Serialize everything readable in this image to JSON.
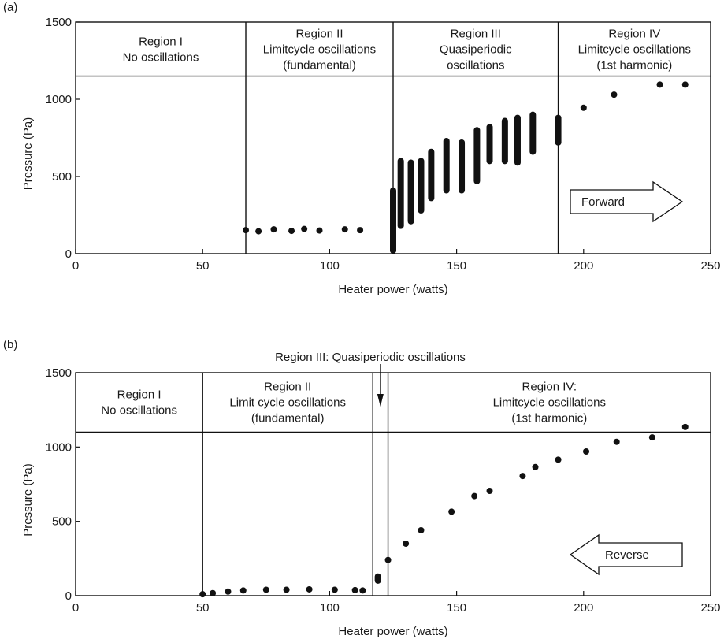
{
  "chart_data": [
    {
      "panel_label": "(a)",
      "type": "scatter",
      "xlabel": "Heater power (watts)",
      "ylabel": "Pressure (Pa)",
      "xlim": [
        0,
        250
      ],
      "ylim": [
        0,
        1500
      ],
      "xticks": [
        0,
        50,
        100,
        150,
        200,
        250
      ],
      "yticks": [
        0,
        500,
        1000,
        1500
      ],
      "grid": false,
      "band_top": 1150,
      "regions": [
        {
          "lines": [
            "Region I",
            "No oscillations"
          ],
          "x_from": 0,
          "x_to": 67
        },
        {
          "lines": [
            "Region II",
            "Limitcycle oscillations",
            "(fundamental)"
          ],
          "x_from": 67,
          "x_to": 125
        },
        {
          "lines": [
            "Region III",
            "Quasiperiodic",
            "oscillations"
          ],
          "x_from": 125,
          "x_to": 190
        },
        {
          "lines": [
            "Region IV",
            "Limitcycle oscillations",
            "(1st harmonic)"
          ],
          "x_from": 190,
          "x_to": 250
        }
      ],
      "arrow": {
        "label": "Forward",
        "direction": "right"
      },
      "series": [
        {
          "marks": [
            {
              "x": 67,
              "y_min": 135,
              "y_max": 170
            },
            {
              "x": 72,
              "y_min": 130,
              "y_max": 160
            },
            {
              "x": 78,
              "y_min": 145,
              "y_max": 170
            },
            {
              "x": 85,
              "y_min": 130,
              "y_max": 165
            },
            {
              "x": 90,
              "y_min": 145,
              "y_max": 175
            },
            {
              "x": 96,
              "y_min": 130,
              "y_max": 170
            },
            {
              "x": 106,
              "y_min": 145,
              "y_max": 170
            },
            {
              "x": 112,
              "y_min": 135,
              "y_max": 170
            },
            {
              "x": 125,
              "y_min": 0,
              "y_max": 430
            },
            {
              "x": 128,
              "y_min": 160,
              "y_max": 620
            },
            {
              "x": 132,
              "y_min": 190,
              "y_max": 610
            },
            {
              "x": 136,
              "y_min": 260,
              "y_max": 620
            },
            {
              "x": 140,
              "y_min": 340,
              "y_max": 680
            },
            {
              "x": 146,
              "y_min": 390,
              "y_max": 750
            },
            {
              "x": 152,
              "y_min": 390,
              "y_max": 740
            },
            {
              "x": 158,
              "y_min": 450,
              "y_max": 820
            },
            {
              "x": 163,
              "y_min": 580,
              "y_max": 840
            },
            {
              "x": 169,
              "y_min": 580,
              "y_max": 880
            },
            {
              "x": 174,
              "y_min": 570,
              "y_max": 900
            },
            {
              "x": 180,
              "y_min": 640,
              "y_max": 920
            },
            {
              "x": 190,
              "y_min": 700,
              "y_max": 900
            },
            {
              "x": 200,
              "y_min": 930,
              "y_max": 960
            },
            {
              "x": 212,
              "y_min": 1010,
              "y_max": 1050
            },
            {
              "x": 230,
              "y_min": 1080,
              "y_max": 1110
            },
            {
              "x": 240,
              "y_min": 1080,
              "y_max": 1110
            }
          ]
        }
      ]
    },
    {
      "panel_label": "(b)",
      "type": "scatter",
      "xlabel": "Heater power (watts)",
      "ylabel": "Pressure (Pa)",
      "xlim": [
        0,
        250
      ],
      "ylim": [
        0,
        1500
      ],
      "xticks": [
        0,
        50,
        100,
        150,
        200,
        250
      ],
      "yticks": [
        0,
        500,
        1000,
        1500
      ],
      "grid": false,
      "band_top": 1100,
      "regions": [
        {
          "lines": [
            "Region I",
            "No oscillations"
          ],
          "x_from": 0,
          "x_to": 50
        },
        {
          "lines": [
            "Region II",
            "Limit cycle oscillations",
            "(fundamental)"
          ],
          "x_from": 50,
          "x_to": 117
        },
        {
          "lines": [],
          "x_from": 117,
          "x_to": 123
        },
        {
          "lines": [
            "Region IV:",
            "Limitcycle oscillations",
            "(1st harmonic)"
          ],
          "x_from": 123,
          "x_to": 250
        }
      ],
      "callout": {
        "text": "Region III: Quasiperiodic oscillations",
        "points_to_x": 120
      },
      "arrow": {
        "label": "Reverse",
        "direction": "left"
      },
      "series": [
        {
          "marks": [
            {
              "x": 50,
              "y_min": 0,
              "y_max": 20
            },
            {
              "x": 54,
              "y_min": 10,
              "y_max": 25
            },
            {
              "x": 60,
              "y_min": 20,
              "y_max": 35
            },
            {
              "x": 66,
              "y_min": 25,
              "y_max": 45
            },
            {
              "x": 75,
              "y_min": 30,
              "y_max": 50
            },
            {
              "x": 83,
              "y_min": 30,
              "y_max": 50
            },
            {
              "x": 92,
              "y_min": 30,
              "y_max": 55
            },
            {
              "x": 102,
              "y_min": 30,
              "y_max": 50
            },
            {
              "x": 110,
              "y_min": 25,
              "y_max": 50
            },
            {
              "x": 113,
              "y_min": 25,
              "y_max": 45
            },
            {
              "x": 119,
              "y_min": 80,
              "y_max": 150
            },
            {
              "x": 123,
              "y_min": 230,
              "y_max": 250
            },
            {
              "x": 130,
              "y_min": 340,
              "y_max": 360
            },
            {
              "x": 136,
              "y_min": 430,
              "y_max": 450
            },
            {
              "x": 148,
              "y_min": 550,
              "y_max": 580
            },
            {
              "x": 157,
              "y_min": 650,
              "y_max": 690
            },
            {
              "x": 163,
              "y_min": 690,
              "y_max": 720
            },
            {
              "x": 176,
              "y_min": 790,
              "y_max": 820
            },
            {
              "x": 181,
              "y_min": 850,
              "y_max": 880
            },
            {
              "x": 190,
              "y_min": 900,
              "y_max": 930
            },
            {
              "x": 201,
              "y_min": 950,
              "y_max": 990
            },
            {
              "x": 213,
              "y_min": 1020,
              "y_max": 1050
            },
            {
              "x": 227,
              "y_min": 1050,
              "y_max": 1080
            },
            {
              "x": 240,
              "y_min": 1120,
              "y_max": 1150
            }
          ]
        }
      ]
    }
  ]
}
